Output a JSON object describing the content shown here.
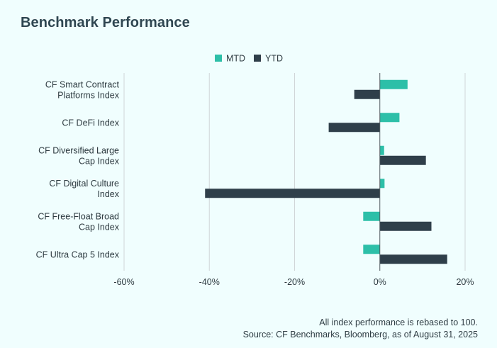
{
  "title": "Benchmark Performance",
  "footnote": {
    "line1": "All index performance is rebased to 100.",
    "line2": "Source: CF Benchmarks, Bloomberg, as of August 31, 2025"
  },
  "colors": {
    "mtd": "#2dbfa8",
    "ytd": "#2f3f4a",
    "grid": "#d0d6d8",
    "zero": "#555e63",
    "background": "#f0fefe"
  },
  "chart_data": {
    "type": "bar",
    "orientation": "horizontal",
    "categories": [
      [
        "CF Smart Contract",
        "Platforms Index"
      ],
      [
        "CF DeFi Index"
      ],
      [
        "CF Diversified Large",
        "Cap Index"
      ],
      [
        "CF Digital Culture",
        "Index"
      ],
      [
        "CF Free-Float Broad",
        "Cap Index"
      ],
      [
        "CF Ultra Cap 5 Index"
      ]
    ],
    "series": [
      {
        "name": "MTD",
        "values": [
          6.5,
          4.6,
          1.0,
          1.1,
          -3.9,
          -3.9
        ]
      },
      {
        "name": "YTD",
        "values": [
          -6.0,
          -12.0,
          10.8,
          -41.0,
          12.1,
          15.8
        ]
      }
    ],
    "xlim": [
      -60,
      20
    ],
    "xticks": [
      -60,
      -40,
      -20,
      0,
      20
    ],
    "xtick_labels": [
      "-60%",
      "-40%",
      "-20%",
      "0%",
      "20%"
    ],
    "grid": true,
    "legend_position": "top-center"
  }
}
